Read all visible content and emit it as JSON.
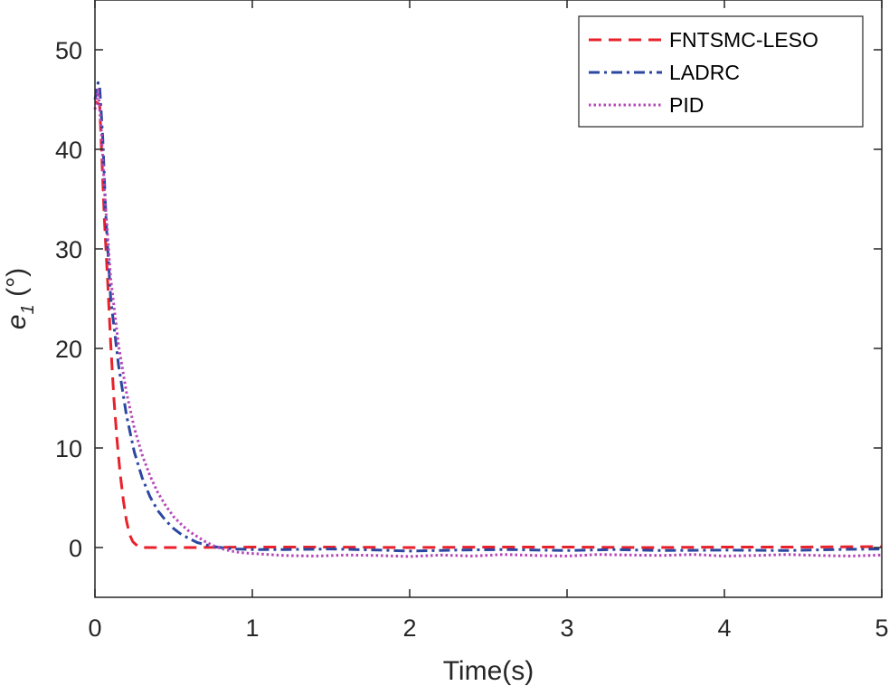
{
  "chart_data": {
    "type": "line",
    "title": "",
    "xlabel": "Time(s)",
    "ylabel": "e",
    "ylabel_subscript": "1",
    "ylabel_unit": " (°)",
    "xlim": [
      0,
      5
    ],
    "ylim": [
      -5,
      55
    ],
    "xticks": [
      0,
      1,
      2,
      3,
      4,
      5
    ],
    "yticks": [
      0,
      10,
      20,
      30,
      40,
      50
    ],
    "grid": false,
    "legend_position": "top-right",
    "series": [
      {
        "name": "FNTSMC-LESO",
        "color": "#e8212b",
        "dash": "dashed",
        "x": [
          0,
          0.03,
          0.06,
          0.08,
          0.1,
          0.12,
          0.14,
          0.16,
          0.18,
          0.2,
          0.22,
          0.24,
          0.26,
          0.28,
          0.3,
          0.32,
          0.35,
          0.4,
          0.6,
          1.0,
          1.5,
          2.0,
          2.5,
          3.0,
          3.5,
          4.0,
          4.5,
          5.0
        ],
        "y": [
          44.8,
          44.5,
          33.0,
          27.0,
          20.5,
          15.0,
          10.8,
          7.5,
          4.8,
          2.7,
          1.3,
          0.6,
          0.3,
          0.1,
          0.0,
          0.0,
          0.0,
          0.0,
          0.0,
          0.05,
          0.05,
          0.0,
          0.05,
          0.05,
          0.0,
          0.05,
          0.05,
          0.1
        ]
      },
      {
        "name": "LADRC",
        "color": "#2b47a0",
        "dash": "dashdot",
        "x": [
          0,
          0.02,
          0.03,
          0.05,
          0.07,
          0.1,
          0.15,
          0.2,
          0.25,
          0.3,
          0.35,
          0.4,
          0.45,
          0.5,
          0.55,
          0.6,
          0.65,
          0.7,
          0.75,
          0.8,
          0.85,
          0.9,
          1.0,
          1.2,
          1.5,
          1.8,
          2.0,
          2.3,
          2.6,
          3.0,
          3.3,
          3.6,
          4.0,
          4.4,
          4.7,
          5.0
        ],
        "y": [
          45.0,
          46.7,
          46.3,
          41.0,
          33.0,
          25.0,
          18.3,
          13.3,
          9.6,
          7.0,
          5.1,
          3.7,
          2.7,
          1.9,
          1.3,
          0.9,
          0.5,
          0.3,
          0.1,
          0.0,
          -0.1,
          -0.15,
          -0.2,
          -0.2,
          -0.15,
          -0.25,
          -0.35,
          -0.25,
          -0.2,
          -0.3,
          -0.2,
          -0.3,
          -0.25,
          -0.3,
          -0.2,
          -0.15
        ]
      },
      {
        "name": "PID",
        "color": "#b546b8",
        "dash": "dotted",
        "x": [
          0,
          0.02,
          0.04,
          0.06,
          0.08,
          0.1,
          0.15,
          0.2,
          0.25,
          0.3,
          0.35,
          0.4,
          0.45,
          0.5,
          0.55,
          0.6,
          0.65,
          0.7,
          0.75,
          0.8,
          0.85,
          0.9,
          0.95,
          1.0,
          1.1,
          1.2,
          1.4,
          1.6,
          1.8,
          2.0,
          2.2,
          2.4,
          2.6,
          2.8,
          3.0,
          3.2,
          3.4,
          3.6,
          3.8,
          4.0,
          4.2,
          4.4,
          4.6,
          4.8,
          5.0
        ],
        "y": [
          44.0,
          46.0,
          42.0,
          36.0,
          31.5,
          27.0,
          20.3,
          15.6,
          12.0,
          9.3,
          7.2,
          5.5,
          4.2,
          3.1,
          2.3,
          1.6,
          1.1,
          0.6,
          0.2,
          -0.1,
          -0.3,
          -0.45,
          -0.55,
          -0.6,
          -0.7,
          -0.8,
          -0.85,
          -0.75,
          -0.8,
          -0.9,
          -0.75,
          -0.85,
          -0.7,
          -0.8,
          -0.85,
          -0.7,
          -0.75,
          -0.8,
          -0.7,
          -0.85,
          -0.8,
          -0.7,
          -0.8,
          -0.85,
          -0.75
        ]
      }
    ]
  }
}
